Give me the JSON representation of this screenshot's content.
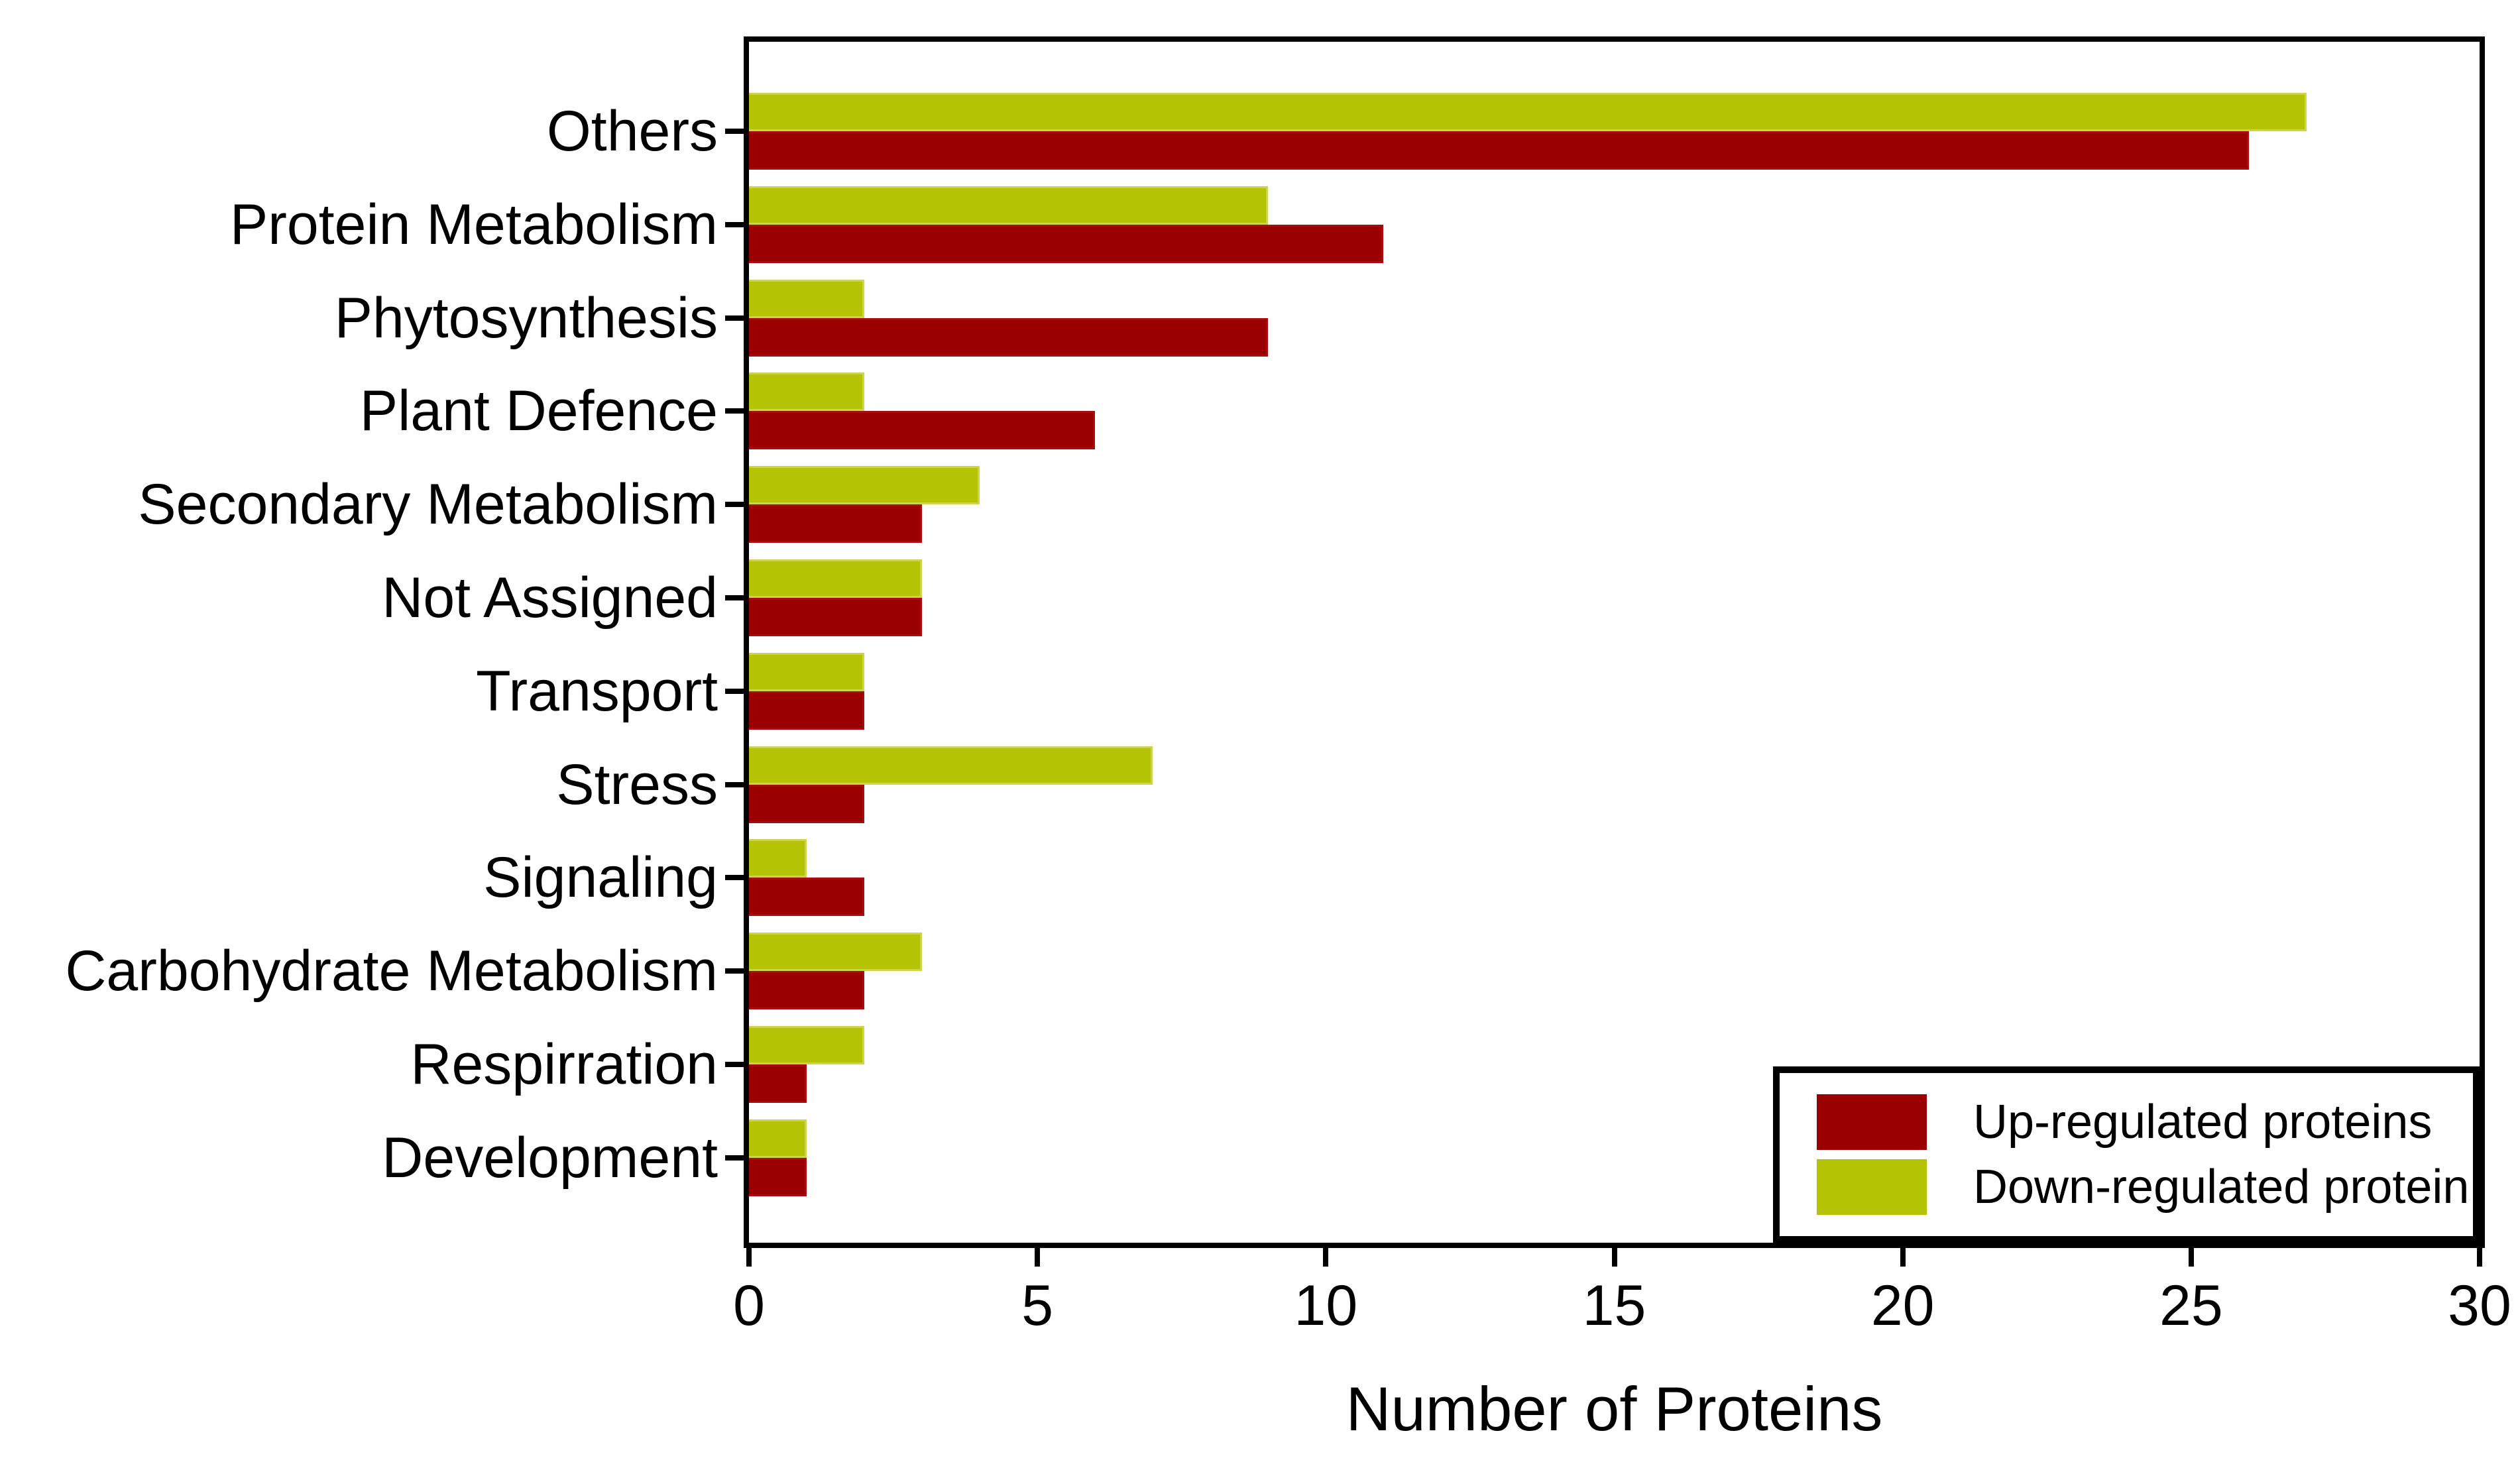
{
  "chart_data": {
    "type": "bar",
    "orientation": "horizontal",
    "title": "",
    "xlabel": "Number of Proteins",
    "ylabel": "",
    "xlim": [
      0,
      30
    ],
    "x_ticks": [
      0,
      5,
      10,
      15,
      20,
      25,
      30
    ],
    "grid": false,
    "legend_position": "lower right",
    "bar_layout": "down-regulated bar drawn above up-regulated bar for each category",
    "categories": [
      "Others",
      "Protein Metabolism",
      "Phytosynthesis",
      "Plant Defence",
      "Secondary Metabolism",
      "Not Assigned",
      "Transport",
      "Stress",
      "Signaling",
      "Carbohydrate Metabolism",
      "Respirration",
      "Development"
    ],
    "series": [
      {
        "name": "Up-regulated proteins",
        "color": "#9a0000",
        "values": [
          26,
          11,
          9,
          6,
          3,
          3,
          2,
          2,
          2,
          2,
          1,
          1
        ]
      },
      {
        "name": "Down-regulated protein",
        "color": "#b4c404",
        "values": [
          27,
          9,
          2,
          2,
          4,
          3,
          2,
          7,
          1,
          3,
          2,
          1
        ]
      }
    ]
  },
  "colors": {
    "up_regulated": "#9a0000",
    "down_regulated": "#b4c404",
    "axis": "#000000",
    "background": "#ffffff"
  }
}
